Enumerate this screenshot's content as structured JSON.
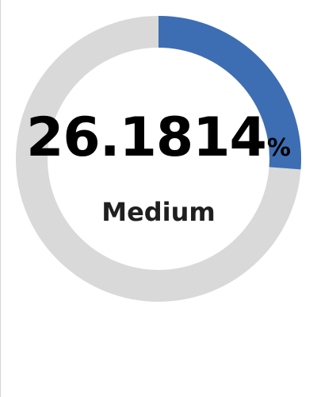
{
  "chart_data": {
    "type": "pie",
    "value": 26.1814,
    "value_label": "26.1814",
    "unit": "%",
    "label": "Medium",
    "max": 100,
    "colors": {
      "fill": "#3d6eb3",
      "track": "#d9d9d9",
      "value_text": "#000000",
      "label_text": "#1f1f1f"
    }
  }
}
